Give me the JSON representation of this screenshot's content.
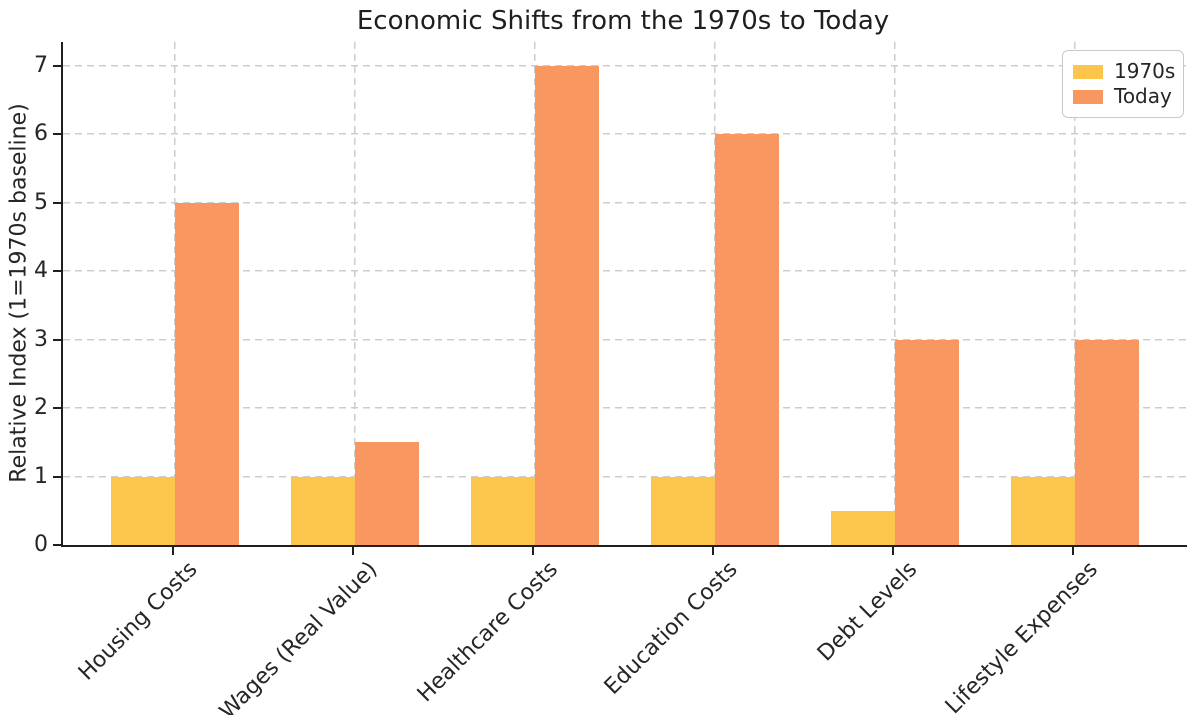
{
  "chart_data": {
    "type": "bar",
    "title": "Economic Shifts from the 1970s to Today",
    "xlabel": "",
    "ylabel": "Relative Index (1=1970s baseline)",
    "categories": [
      "Housing Costs",
      "Wages (Real Value)",
      "Healthcare Costs",
      "Education Costs",
      "Debt Levels",
      "Lifestyle Expenses"
    ],
    "series": [
      {
        "name": "1970s",
        "color": "#FCC64D",
        "values": [
          1,
          1,
          1,
          1,
          0.5,
          1
        ]
      },
      {
        "name": "Today",
        "color": "#F89760",
        "values": [
          5,
          1.5,
          7,
          6,
          3,
          3
        ]
      }
    ],
    "yticks": [
      0,
      1,
      2,
      3,
      4,
      5,
      6,
      7
    ],
    "ylim": [
      0,
      7.35
    ],
    "grid": true,
    "grid_style": "dashed",
    "grid_color": "#cccccc",
    "axis_color": "#1f1f1f",
    "text_color": "#262626",
    "legend_position": "upper right",
    "x_tick_rotation_deg": 45
  }
}
